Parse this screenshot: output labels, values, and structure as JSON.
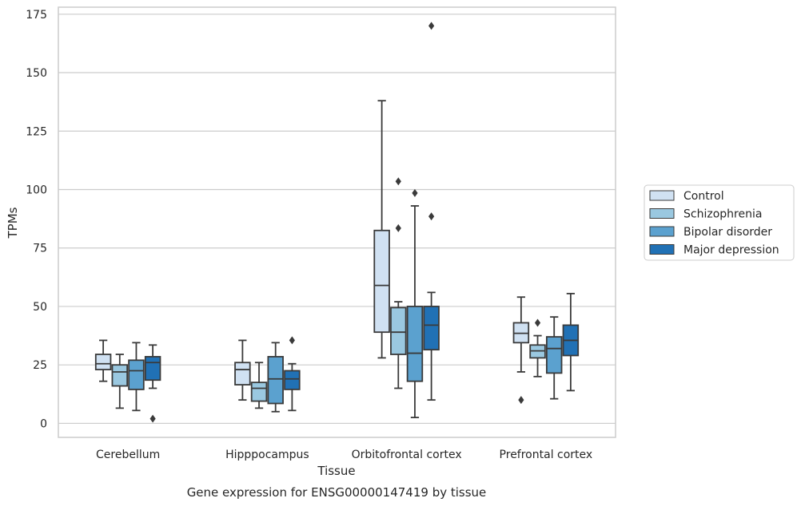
{
  "caption": "Gene expression for ENSG00000147419 by tissue",
  "chart_data": {
    "type": "box",
    "xlabel": "Tissue",
    "ylabel": "TPMs",
    "ylim": [
      -6,
      178
    ],
    "yticks": [
      0,
      25,
      50,
      75,
      100,
      125,
      150,
      175
    ],
    "grid": "horizontal",
    "legend_position": "right",
    "categories": [
      "Cerebellum",
      "Hipppocampus",
      "Orbitofrontal cortex",
      "Prefrontal cortex"
    ],
    "series": [
      {
        "name": "Control",
        "color": "#d0e1f2",
        "boxes": [
          {
            "whislo": 18,
            "q1": 23,
            "med": 25.5,
            "q3": 29.5,
            "whishi": 35.5,
            "fliers": []
          },
          {
            "whislo": 10,
            "q1": 16.5,
            "med": 23,
            "q3": 26,
            "whishi": 35.5,
            "fliers": []
          },
          {
            "whislo": 28,
            "q1": 39,
            "med": 59,
            "q3": 82.5,
            "whishi": 138,
            "fliers": []
          },
          {
            "whislo": 22,
            "q1": 34.5,
            "med": 38.5,
            "q3": 43,
            "whishi": 54,
            "fliers": [
              10
            ]
          }
        ]
      },
      {
        "name": "Schizophrenia",
        "color": "#9ac8e0",
        "boxes": [
          {
            "whislo": 6.5,
            "q1": 16,
            "med": 22,
            "q3": 25,
            "whishi": 29.5,
            "fliers": []
          },
          {
            "whislo": 6.5,
            "q1": 9.5,
            "med": 15,
            "q3": 17.5,
            "whishi": 26,
            "fliers": []
          },
          {
            "whislo": 15,
            "q1": 29.5,
            "med": 39,
            "q3": 49.5,
            "whishi": 52,
            "fliers": [
              83.5,
              103.5
            ]
          },
          {
            "whislo": 20,
            "q1": 28,
            "med": 31,
            "q3": 33.5,
            "whishi": 37.5,
            "fliers": [
              43
            ]
          }
        ]
      },
      {
        "name": "Bipolar disorder",
        "color": "#5ba1cf",
        "boxes": [
          {
            "whislo": 5.5,
            "q1": 14.5,
            "med": 22.5,
            "q3": 27,
            "whishi": 34.5,
            "fliers": []
          },
          {
            "whislo": 5,
            "q1": 8.5,
            "med": 19,
            "q3": 28.5,
            "whishi": 34.5,
            "fliers": []
          },
          {
            "whislo": 2.5,
            "q1": 18,
            "med": 30,
            "q3": 50,
            "whishi": 93,
            "fliers": [
              98.5
            ]
          },
          {
            "whislo": 10.5,
            "q1": 21.5,
            "med": 32,
            "q3": 37,
            "whishi": 45.5,
            "fliers": []
          }
        ]
      },
      {
        "name": "Major depression",
        "color": "#2171b5",
        "boxes": [
          {
            "whislo": 15,
            "q1": 18.5,
            "med": 26,
            "q3": 28.5,
            "whishi": 33.5,
            "fliers": [
              2
            ]
          },
          {
            "whislo": 5.5,
            "q1": 14.5,
            "med": 19,
            "q3": 22.5,
            "whishi": 25.5,
            "fliers": [
              35.5
            ]
          },
          {
            "whislo": 10,
            "q1": 31.5,
            "med": 42,
            "q3": 50,
            "whishi": 56,
            "fliers": [
              88.5,
              170
            ]
          },
          {
            "whislo": 14,
            "q1": 29,
            "med": 35.5,
            "q3": 42,
            "whishi": 55.5,
            "fliers": []
          }
        ]
      }
    ]
  }
}
